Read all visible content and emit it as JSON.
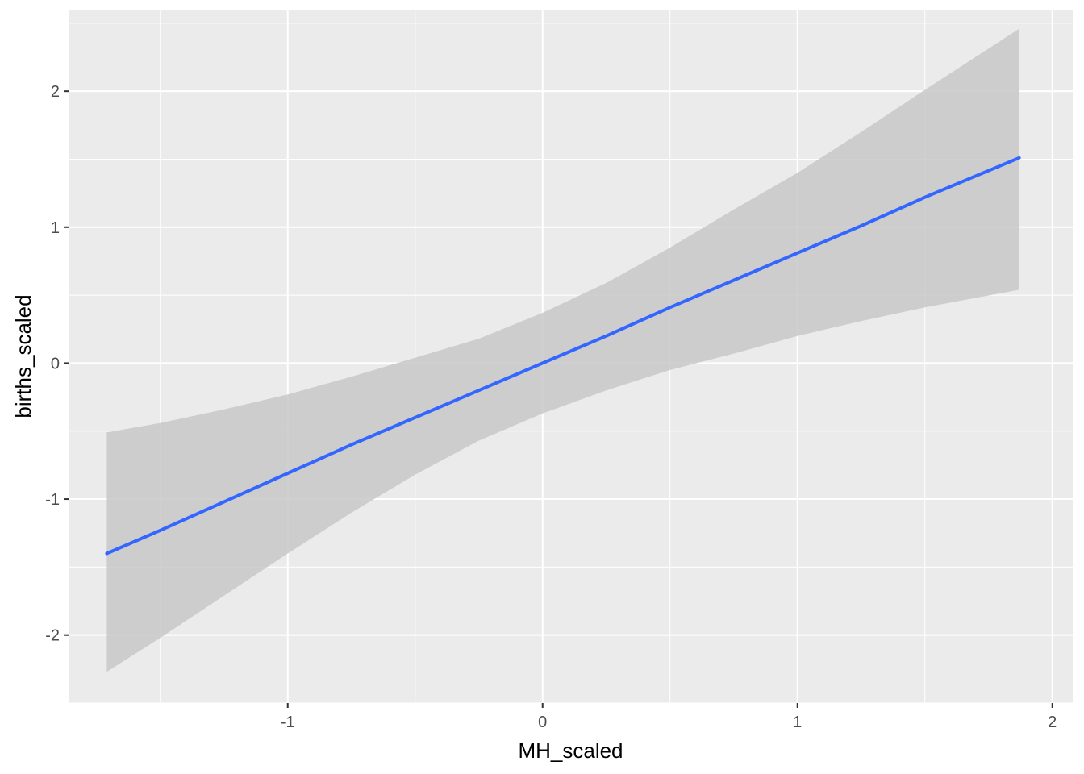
{
  "chart_data": {
    "type": "line",
    "xlabel": "MH_scaled",
    "ylabel": "births_scaled",
    "xlim": [
      -1.86,
      2.08
    ],
    "ylim": [
      -2.5,
      2.6
    ],
    "x_ticks": [
      -1,
      0,
      1,
      2
    ],
    "x_tick_labels": [
      "-1",
      "0",
      "1",
      "2"
    ],
    "y_ticks": [
      -2,
      -1,
      0,
      1,
      2
    ],
    "y_tick_labels": [
      "-2",
      "-1",
      "0",
      "1",
      "2"
    ],
    "grid": true,
    "series": [
      {
        "x": [
          -1.71,
          -1.5,
          -1.25,
          -1.0,
          -0.75,
          -0.5,
          -0.25,
          0.0,
          0.25,
          0.5,
          0.75,
          1.0,
          1.25,
          1.5,
          1.87
        ],
        "y": [
          -1.4,
          -1.23,
          -1.02,
          -0.81,
          -0.6,
          -0.4,
          -0.2,
          0.0,
          0.2,
          0.41,
          0.61,
          0.81,
          1.01,
          1.22,
          1.51
        ],
        "lower": [
          -2.27,
          -2.02,
          -1.71,
          -1.4,
          -1.1,
          -0.82,
          -0.57,
          -0.37,
          -0.2,
          -0.05,
          0.07,
          0.2,
          0.31,
          0.41,
          0.54
        ],
        "upper": [
          -0.51,
          -0.44,
          -0.34,
          -0.23,
          -0.1,
          0.04,
          0.18,
          0.37,
          0.59,
          0.85,
          1.13,
          1.4,
          1.7,
          2.01,
          2.46
        ]
      }
    ],
    "colors": {
      "line": "#3366FF",
      "ribbon": "#c8c8c8",
      "panel": "#EBEBEB",
      "grid": "#FFFFFF",
      "tick_text": "#4D4D4D",
      "tick_mark": "#333333"
    }
  }
}
